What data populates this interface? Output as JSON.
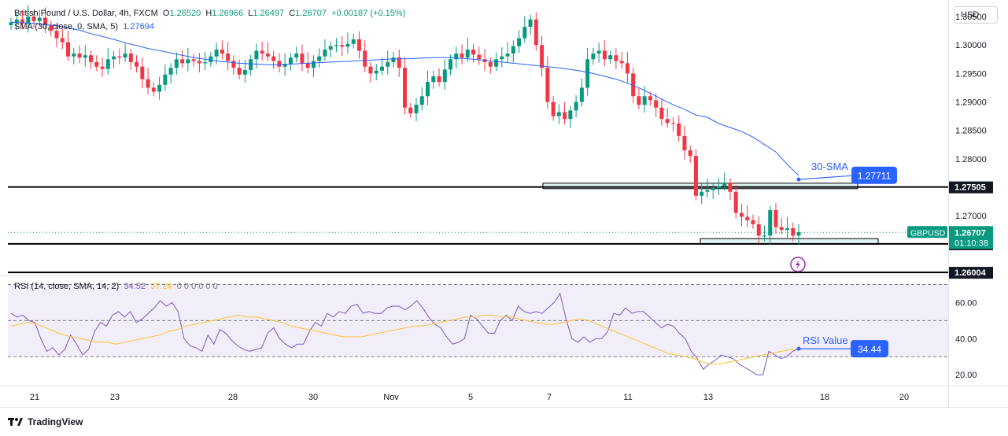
{
  "header": {
    "symbol": "British Pound / U.S. Dollar, 4h, FXCM",
    "open_label": "O",
    "open": "1.26520",
    "high_label": "H",
    "high": "1.26966",
    "low_label": "L",
    "low": "1.26497",
    "close_label": "C",
    "close": "1.26707",
    "change": "+0.00187 (+0.15%)",
    "sma_label": "SMA (30, close, 0, SMA, 5)",
    "sma_value": "1.27694"
  },
  "currency_button": "USD",
  "rsi_legend": {
    "label": "RSI (14, close, SMA, 14, 2)",
    "rsi": "34.52",
    "rsi_sma": "37.24",
    "zeros": "0 0 0 0 0 0"
  },
  "price_axis": {
    "ticks": [
      "1.30500",
      "1.30000",
      "1.29500",
      "1.29000",
      "1.28500",
      "1.28000",
      "1.27000"
    ],
    "tick_values": [
      1.305,
      1.3,
      1.295,
      1.29,
      1.285,
      1.28,
      1.27
    ],
    "levels": [
      {
        "label": "1.27505",
        "value": 1.27505
      },
      {
        "label": "1.26505",
        "value": 1.26505
      },
      {
        "label": "1.26004",
        "value": 1.26004
      }
    ],
    "current_symbol": "GBPUSD",
    "current_price": "1.26707",
    "countdown": "01:10:38"
  },
  "rsi_axis": {
    "ticks": [
      "60.00",
      "40.00",
      "20.00"
    ],
    "tick_values": [
      60,
      40,
      20
    ],
    "bands": [
      70,
      50,
      30
    ]
  },
  "time_axis": {
    "labels": [
      "21",
      "23",
      "28",
      "30",
      "Nov",
      "5",
      "7",
      "11",
      "13",
      "18",
      "20"
    ]
  },
  "annotations": {
    "sma_callout_label": "30-SMA",
    "sma_callout_value": "1.27711",
    "rsi_callout_label": "RSI Value",
    "rsi_callout_value": "34.44"
  },
  "colors": {
    "up": "#089981",
    "down": "#f23645",
    "sma": "#2962ff",
    "rsi": "#7e57c2",
    "rsi_sma": "#f7c531",
    "level": "#000000",
    "zone": "#089981"
  },
  "chart_data": [
    {
      "type": "candlestick",
      "title": "British Pound / U.S. Dollar, 4h, FXCM",
      "ylim": [
        1.2595,
        1.3075
      ],
      "closes": [
        1.304,
        1.3045,
        1.3038,
        1.305,
        1.3042,
        1.3048,
        1.3035,
        1.3025,
        1.3012,
        1.3005,
        1.298,
        1.2985,
        1.2978,
        1.2982,
        1.297,
        1.2962,
        1.2958,
        1.2975,
        1.298,
        1.2978,
        1.2985,
        1.297,
        1.2962,
        1.294,
        1.2925,
        1.2918,
        1.293,
        1.2948,
        1.296,
        1.2975,
        1.2968,
        1.2975,
        1.2972,
        1.2968,
        1.297,
        1.298,
        1.2992,
        1.2985,
        1.2972,
        1.296,
        1.2948,
        1.2956,
        1.2975,
        1.299,
        1.2985,
        1.298,
        1.2972,
        1.2962,
        1.2967,
        1.2978,
        1.2985,
        1.2968,
        1.296,
        1.2972,
        1.298,
        1.2992,
        1.2998,
        1.3,
        1.2997,
        1.3002,
        1.301,
        1.299,
        1.2962,
        1.295,
        1.2955,
        1.2962,
        1.297,
        1.2978,
        1.296,
        1.289,
        1.288,
        1.2895,
        1.291,
        1.2935,
        1.2945,
        1.2935,
        1.2957,
        1.2975,
        1.2985,
        1.2978,
        1.2992,
        1.2983,
        1.2975,
        1.297,
        1.2962,
        1.2975,
        1.298,
        1.2985,
        1.2998,
        1.3012,
        1.3032,
        1.3045,
        1.3,
        1.296,
        1.29,
        1.2875,
        1.2882,
        1.287,
        1.2885,
        1.29,
        1.2925,
        1.2975,
        1.2985,
        1.299,
        1.2975,
        1.2982,
        1.2972,
        1.2968,
        1.295,
        1.291,
        1.2895,
        1.291,
        1.2903,
        1.289,
        1.287,
        1.2863,
        1.2862,
        1.284,
        1.2815,
        1.2805,
        1.2735,
        1.2742,
        1.2745,
        1.2748,
        1.2752,
        1.2758,
        1.2742,
        1.2705,
        1.2698,
        1.2692,
        1.2685,
        1.2665,
        1.2665,
        1.271,
        1.268,
        1.2675,
        1.2678,
        1.2665,
        1.2671
      ],
      "sma_30": [
        1.304,
        1.3039,
        1.3038,
        1.3036,
        1.3034,
        1.303,
        1.3026,
        1.302,
        1.3015,
        1.301,
        1.3004,
        1.2999,
        1.2994,
        1.299,
        1.2986,
        1.2982,
        1.2978,
        1.2975,
        1.2972,
        1.297,
        1.2968,
        1.2967,
        1.2966,
        1.2965,
        1.2966,
        1.2967,
        1.2968,
        1.2969,
        1.297,
        1.2971,
        1.2972,
        1.2973,
        1.2974,
        1.2975,
        1.2976,
        1.2976,
        1.2977,
        1.2978,
        1.2978,
        1.2977,
        1.2976,
        1.2974,
        1.2972,
        1.297,
        1.2968,
        1.2966,
        1.2964,
        1.2962,
        1.296,
        1.2957,
        1.2954,
        1.295,
        1.2945,
        1.294,
        1.2933,
        1.2925,
        1.2915,
        1.2905,
        1.2895,
        1.2887,
        1.2877,
        1.2873,
        1.2862,
        1.2855,
        1.2848,
        1.2838,
        1.2825,
        1.2812,
        1.279,
        1.2771
      ],
      "levels": [
        1.27505,
        1.26505,
        1.26004
      ],
      "current_price": 1.26707,
      "sma_value": 1.27711
    },
    {
      "type": "line",
      "title": "RSI (14, close, SMA, 14, 2)",
      "ylim": [
        14,
        75
      ],
      "bands": [
        70,
        50,
        30
      ],
      "rsi": [
        54,
        52,
        53,
        50,
        49,
        40,
        33,
        35,
        31,
        34,
        42,
        37,
        31,
        34,
        44,
        49,
        47,
        53,
        55,
        52,
        55,
        49,
        51,
        54,
        57,
        61,
        58,
        60,
        55,
        40,
        36,
        35,
        33,
        42,
        37,
        45,
        43,
        39,
        36,
        34,
        33,
        34,
        35,
        43,
        46,
        40,
        37,
        35,
        37,
        37,
        44,
        49,
        47,
        54,
        52,
        55,
        54,
        58,
        59,
        54,
        55,
        54,
        54,
        57,
        58,
        58,
        56,
        58,
        61,
        57,
        52,
        48,
        46,
        41,
        37,
        38,
        40,
        53,
        51,
        47,
        43,
        43,
        50,
        53,
        50,
        58,
        55,
        54,
        55,
        54,
        57,
        60,
        65,
        51,
        40,
        38,
        41,
        38,
        40,
        40,
        44,
        54,
        53,
        57,
        54,
        55,
        55,
        52,
        49,
        46,
        48,
        47,
        43,
        40,
        33,
        29,
        23,
        26,
        28,
        31,
        30,
        29,
        26,
        24,
        22,
        20,
        20,
        33,
        31,
        29,
        30,
        33,
        34.44
      ],
      "rsi_sma": [
        47,
        48,
        49,
        48,
        46,
        44,
        42,
        41,
        40,
        39,
        38,
        38,
        37,
        38,
        39,
        40,
        41,
        42,
        44,
        45,
        47,
        48,
        49,
        50,
        51,
        52,
        53,
        52,
        52,
        51,
        50,
        49,
        47,
        46,
        45,
        44,
        43,
        42,
        41,
        41,
        41,
        42,
        43,
        44,
        45,
        46,
        47,
        47,
        48,
        49,
        50,
        51,
        52,
        52,
        53,
        53,
        52,
        52,
        51,
        50,
        49,
        48,
        48,
        49,
        50,
        51,
        50,
        48,
        46,
        44,
        42,
        40,
        38,
        36,
        34,
        32,
        31,
        30,
        29,
        27,
        26,
        26,
        27,
        28,
        29,
        30,
        31,
        32,
        33,
        34,
        34.44
      ],
      "rsi_value": 34.44
    }
  ]
}
